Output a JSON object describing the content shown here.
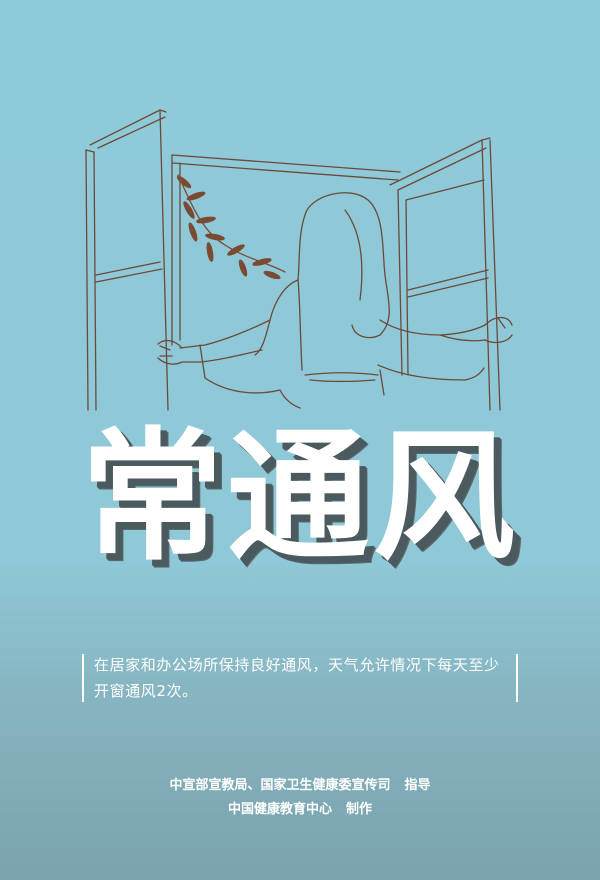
{
  "title": "常通风",
  "description": "在居家和办公场所保持良好通风，天气允许情况下每天至少开窗通风2次。",
  "credits": {
    "guide_org": "中宣部宣教局、国家卫生健康委宣传司",
    "guide_role": "指导",
    "producer_org": "中国健康教育中心",
    "producer_role": "制作"
  },
  "colors": {
    "background_top": "#8fcad9",
    "background_bottom": "#7aa3ad",
    "line_art": "#6b4a3a",
    "leaf": "#7a4a32",
    "title_shadow": "#4a5a5e"
  }
}
